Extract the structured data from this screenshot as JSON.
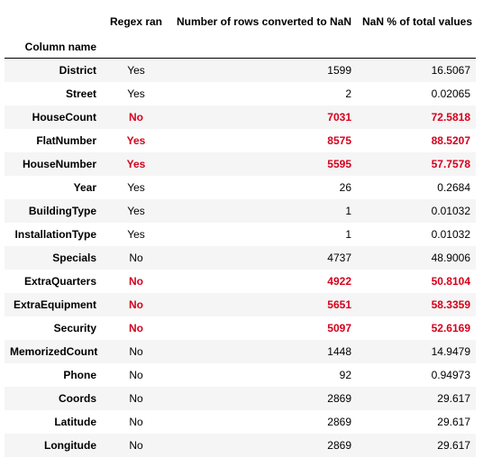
{
  "table": {
    "index_name": "Column name",
    "columns": [
      "Regex ran",
      "Number of rows converted to NaN",
      "NaN % of total values"
    ],
    "highlight_color": "#d6001c",
    "stripe_color": "#f5f5f5",
    "rows": [
      {
        "name": "District",
        "regex": "Yes",
        "nan_rows": "1599",
        "nan_pct": "16.5067",
        "highlight": false
      },
      {
        "name": "Street",
        "regex": "Yes",
        "nan_rows": "2",
        "nan_pct": "0.02065",
        "highlight": false
      },
      {
        "name": "HouseCount",
        "regex": "No",
        "nan_rows": "7031",
        "nan_pct": "72.5818",
        "highlight": true
      },
      {
        "name": "FlatNumber",
        "regex": "Yes",
        "nan_rows": "8575",
        "nan_pct": "88.5207",
        "highlight": true
      },
      {
        "name": "HouseNumber",
        "regex": "Yes",
        "nan_rows": "5595",
        "nan_pct": "57.7578",
        "highlight": true
      },
      {
        "name": "Year",
        "regex": "Yes",
        "nan_rows": "26",
        "nan_pct": "0.2684",
        "highlight": false
      },
      {
        "name": "BuildingType",
        "regex": "Yes",
        "nan_rows": "1",
        "nan_pct": "0.01032",
        "highlight": false
      },
      {
        "name": "InstallationType",
        "regex": "Yes",
        "nan_rows": "1",
        "nan_pct": "0.01032",
        "highlight": false
      },
      {
        "name": "Specials",
        "regex": "No",
        "nan_rows": "4737",
        "nan_pct": "48.9006",
        "highlight": false
      },
      {
        "name": "ExtraQuarters",
        "regex": "No",
        "nan_rows": "4922",
        "nan_pct": "50.8104",
        "highlight": true
      },
      {
        "name": "ExtraEquipment",
        "regex": "No",
        "nan_rows": "5651",
        "nan_pct": "58.3359",
        "highlight": true
      },
      {
        "name": "Security",
        "regex": "No",
        "nan_rows": "5097",
        "nan_pct": "52.6169",
        "highlight": true
      },
      {
        "name": "MemorizedCount",
        "regex": "No",
        "nan_rows": "1448",
        "nan_pct": "14.9479",
        "highlight": false
      },
      {
        "name": "Phone",
        "regex": "No",
        "nan_rows": "92",
        "nan_pct": "0.94973",
        "highlight": false
      },
      {
        "name": "Coords",
        "regex": "No",
        "nan_rows": "2869",
        "nan_pct": "29.617",
        "highlight": false
      },
      {
        "name": "Latitude",
        "regex": "No",
        "nan_rows": "2869",
        "nan_pct": "29.617",
        "highlight": false
      },
      {
        "name": "Longitude",
        "regex": "No",
        "nan_rows": "2869",
        "nan_pct": "29.617",
        "highlight": false
      }
    ]
  }
}
